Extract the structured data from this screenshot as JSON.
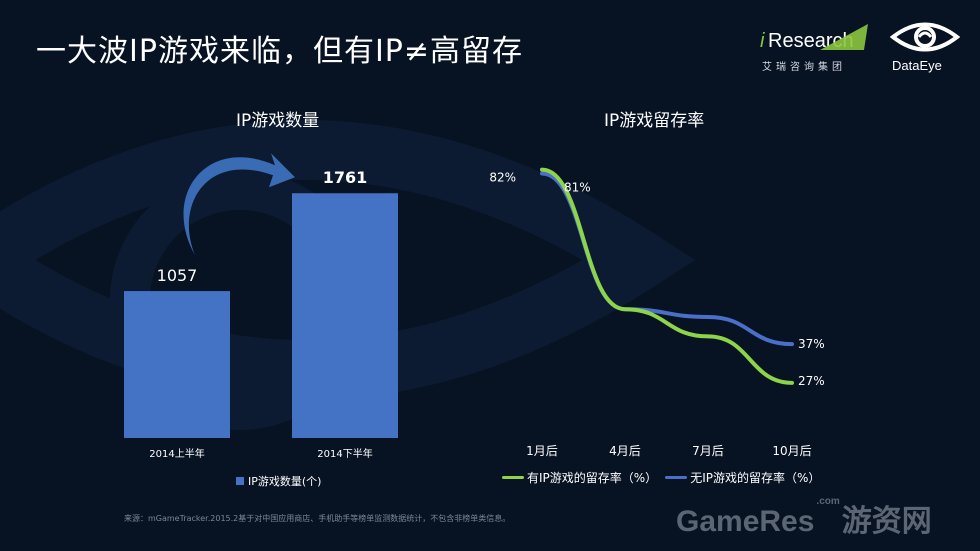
{
  "title": "一大波IP游戏来临，但有IP≠高留存",
  "logos": {
    "iresearch_i": "i",
    "iresearch_word": "Research",
    "iresearch_sub": "艾瑞咨询集团",
    "dataeye_word": "DataEye"
  },
  "colors": {
    "background": "#071223",
    "bar": "#4472c4",
    "arrow": "#3a6bb5",
    "series_ip": "#8cd44a",
    "series_non_ip": "#4a6fc9",
    "ir_green": "#8cc63f"
  },
  "chart_data": [
    {
      "type": "bar",
      "title": "IP游戏数量",
      "categories": [
        "2014上半年",
        "2014下半年"
      ],
      "series": [
        {
          "name": "IP游戏数量(个)",
          "values": [
            1057,
            1761
          ]
        }
      ],
      "value_labels": [
        "1057",
        "1761"
      ],
      "ylim": [
        0,
        2000
      ],
      "grid": false,
      "legend": "bottom",
      "annotation": "curved arrow from first bar to second bar"
    },
    {
      "type": "line",
      "title": "IP游戏留存率",
      "categories": [
        "1月后",
        "4月后",
        "7月后",
        "10月后"
      ],
      "series": [
        {
          "name": "有IP游戏的留存率（%）",
          "values": [
            82,
            46,
            39,
            27
          ],
          "end_labels": [
            "82%",
            "27%"
          ]
        },
        {
          "name": "无IP游戏的留存率（%）",
          "values": [
            81,
            46,
            44,
            37
          ],
          "end_labels": [
            "81%",
            "37%"
          ]
        }
      ],
      "ylim": [
        20,
        85
      ],
      "grid": false,
      "legend": "bottom"
    }
  ],
  "footer": {
    "source": "来源：mGameTracker.2015.2基于对中国应用商店、手机助手等榜单监测数据统计，不包含非榜单类信息。",
    "watermark_main": "GameRes",
    "watermark_com": ".com",
    "watermark_cn": "游资网"
  }
}
